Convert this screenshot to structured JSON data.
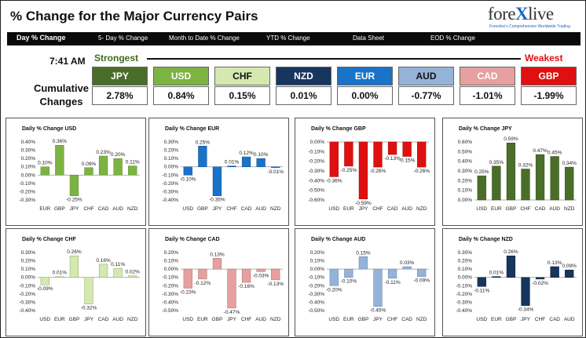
{
  "header": {
    "title": "% Change for the Major Currency Pairs",
    "logo_main_left": "fore",
    "logo_main_x": "X",
    "logo_main_right": "live",
    "logo_tagline": "Forexlive's Comprehensive Worldwide Trading"
  },
  "nav": {
    "items": [
      "Day % Change",
      "5- Day % Change",
      "Month to Date % Change",
      "YTD % Change",
      "Data Sheet",
      "EOD % Change"
    ]
  },
  "summary": {
    "time": "7:41 AM",
    "strongest_label": "Strongest",
    "weakest_label": "Weakest",
    "cumulative_label_line1": "Cumulative",
    "cumulative_label_line2": "Changes",
    "currencies": [
      {
        "code": "JPY",
        "value": "2.78%",
        "color": "#4a6e2a"
      },
      {
        "code": "USD",
        "value": "0.84%",
        "color": "#7cb342"
      },
      {
        "code": "CHF",
        "value": "0.15%",
        "color": "#d4e8b0"
      },
      {
        "code": "NZD",
        "value": "0.01%",
        "color": "#17365d"
      },
      {
        "code": "EUR",
        "value": "0.00%",
        "color": "#1a73c9"
      },
      {
        "code": "AUD",
        "value": "-0.77%",
        "color": "#95b3d7"
      },
      {
        "code": "CAD",
        "value": "-1.01%",
        "color": "#e6a0a0"
      },
      {
        "code": "GBP",
        "value": "-1.99%",
        "color": "#e01010"
      }
    ]
  },
  "chart_data": [
    {
      "type": "bar",
      "title": "Daily % Change USD",
      "categories": [
        "EUR",
        "GBP",
        "JPY",
        "CHF",
        "CAD",
        "AUD",
        "NZD"
      ],
      "values": [
        0.1,
        0.36,
        -0.25,
        0.09,
        0.23,
        0.2,
        0.11
      ],
      "labels": [
        "0.10%",
        "0.36%",
        "-0.25%",
        "0.09%",
        "0.23%",
        "0.20%",
        "0.11%"
      ],
      "ylim": [
        -0.3,
        0.4
      ],
      "ticks": [
        0.4,
        0.3,
        0.2,
        0.1,
        0.0,
        -0.1,
        -0.2,
        -0.3
      ],
      "tick_labels": [
        "0.40%",
        "0.30%",
        "0.20%",
        "0.10%",
        "0.00%",
        "-0.10%",
        "-0.20%",
        "-0.30%"
      ],
      "color": "#7cb342",
      "edge": "#5a8a28"
    },
    {
      "type": "bar",
      "title": "Daily % Change EUR",
      "categories": [
        "USD",
        "GBP",
        "JPY",
        "CHF",
        "CAD",
        "AUD",
        "NZD"
      ],
      "values": [
        -0.1,
        0.25,
        -0.35,
        0.01,
        0.12,
        0.1,
        -0.01
      ],
      "labels": [
        "-0.10%",
        "0.25%",
        "-0.35%",
        "0.01%",
        "0.12%",
        "0.10%",
        "-0.01%"
      ],
      "ylim": [
        -0.4,
        0.3
      ],
      "ticks": [
        0.3,
        0.2,
        0.1,
        0.0,
        -0.1,
        -0.2,
        -0.3,
        -0.4
      ],
      "tick_labels": [
        "0.30%",
        "0.20%",
        "0.10%",
        "0.00%",
        "-0.10%",
        "-0.20%",
        "-0.30%",
        "-0.40%"
      ],
      "color": "#1a73c9",
      "edge": "#0f4f91"
    },
    {
      "type": "bar",
      "title": "Daily % Change GBP",
      "categories": [
        "USD",
        "EUR",
        "JPY",
        "CHF",
        "CAD",
        "AUD",
        "NZD"
      ],
      "values": [
        -0.36,
        -0.25,
        -0.59,
        -0.26,
        -0.13,
        -0.15,
        -0.26
      ],
      "labels": [
        "-0.36%",
        "-0.25%",
        "-0.59%",
        "-0.26%",
        "-0.13%",
        "-0.15%",
        "-0.26%"
      ],
      "ylim": [
        -0.6,
        0.0
      ],
      "ticks": [
        0.0,
        -0.1,
        -0.2,
        -0.3,
        -0.4,
        -0.5,
        -0.6
      ],
      "tick_labels": [
        "0.00%",
        "-0.10%",
        "-0.20%",
        "-0.30%",
        "-0.40%",
        "-0.50%",
        "-0.60%"
      ],
      "color": "#e01010",
      "edge": "#a00000"
    },
    {
      "type": "bar",
      "title": "Daily % Change JPY",
      "categories": [
        "USD",
        "EUR",
        "GBP",
        "CHF",
        "CAD",
        "AUD",
        "NZD"
      ],
      "values": [
        0.25,
        0.35,
        0.59,
        0.32,
        0.47,
        0.45,
        0.34
      ],
      "labels": [
        "0.25%",
        "0.35%",
        "0.59%",
        "0.32%",
        "0.47%",
        "0.45%",
        "0.34%"
      ],
      "ylim": [
        0.0,
        0.6
      ],
      "ticks": [
        0.6,
        0.5,
        0.4,
        0.3,
        0.2,
        0.1,
        0.0
      ],
      "tick_labels": [
        "0.60%",
        "0.50%",
        "0.40%",
        "0.30%",
        "0.20%",
        "0.10%",
        "0.00%"
      ],
      "color": "#4a6e2a",
      "edge": "#2e4a15"
    },
    {
      "type": "bar",
      "title": "Daily % Change CHF",
      "categories": [
        "USD",
        "EUR",
        "GBP",
        "JPY",
        "CAD",
        "AUD",
        "NZD"
      ],
      "values": [
        -0.09,
        0.01,
        0.26,
        -0.32,
        0.16,
        0.11,
        0.02
      ],
      "labels": [
        "-0.09%",
        "0.01%",
        "0.26%",
        "-0.32%",
        "0.16%",
        "0.11%",
        "0.02%"
      ],
      "ylim": [
        -0.4,
        0.3
      ],
      "ticks": [
        0.3,
        0.2,
        0.1,
        0.0,
        -0.1,
        -0.2,
        -0.3,
        -0.4
      ],
      "tick_labels": [
        "0.30%",
        "0.20%",
        "0.10%",
        "0.00%",
        "-0.10%",
        "-0.20%",
        "-0.30%",
        "-0.40%"
      ],
      "color": "#d4e8b0",
      "edge": "#8aa860"
    },
    {
      "type": "bar",
      "title": "Daily % Change CAD",
      "categories": [
        "USD",
        "EUR",
        "GBP",
        "JPY",
        "CHF",
        "AUD",
        "NZD"
      ],
      "values": [
        -0.23,
        -0.12,
        0.13,
        -0.47,
        -0.16,
        -0.03,
        -0.13
      ],
      "labels": [
        "-0.23%",
        "-0.12%",
        "0.13%",
        "-0.47%",
        "-0.16%",
        "-0.03%",
        "-0.13%"
      ],
      "ylim": [
        -0.5,
        0.2
      ],
      "ticks": [
        0.2,
        0.1,
        0.0,
        -0.1,
        -0.2,
        -0.3,
        -0.4,
        -0.5
      ],
      "tick_labels": [
        "0.20%",
        "0.10%",
        "0.00%",
        "-0.10%",
        "-0.20%",
        "-0.30%",
        "-0.40%",
        "-0.50%"
      ],
      "color": "#e6a0a0",
      "edge": "#b06a6a"
    },
    {
      "type": "bar",
      "title": "Daily % Change AUD",
      "categories": [
        "USD",
        "EUR",
        "GBP",
        "JPY",
        "CHF",
        "CAD",
        "NZD"
      ],
      "values": [
        -0.2,
        -0.1,
        0.15,
        -0.45,
        -0.11,
        0.03,
        -0.09
      ],
      "labels": [
        "-0.20%",
        "-0.10%",
        "0.15%",
        "-0.45%",
        "-0.11%",
        "0.03%",
        "-0.09%"
      ],
      "ylim": [
        -0.5,
        0.2
      ],
      "ticks": [
        0.2,
        0.1,
        0.0,
        -0.1,
        -0.2,
        -0.3,
        -0.4,
        -0.5
      ],
      "tick_labels": [
        "0.20%",
        "0.10%",
        "0.00%",
        "-0.10%",
        "-0.20%",
        "-0.30%",
        "-0.40%",
        "-0.50%"
      ],
      "color": "#95b3d7",
      "edge": "#5f82ad"
    },
    {
      "type": "bar",
      "title": "Daily % Change NZD",
      "categories": [
        "USD",
        "EUR",
        "GBP",
        "JPY",
        "CHF",
        "CAD",
        "AUD"
      ],
      "values": [
        -0.11,
        0.01,
        0.26,
        -0.34,
        -0.02,
        0.13,
        0.09
      ],
      "labels": [
        "-0.11%",
        "0.01%",
        "0.26%",
        "-0.34%",
        "-0.02%",
        "0.13%",
        "0.09%"
      ],
      "ylim": [
        -0.4,
        0.3
      ],
      "ticks": [
        0.3,
        0.2,
        0.1,
        0.0,
        -0.1,
        -0.2,
        -0.3,
        -0.4
      ],
      "tick_labels": [
        "0.30%",
        "0.20%",
        "0.10%",
        "0.00%",
        "-0.10%",
        "-0.20%",
        "-0.30%",
        "-0.40%"
      ],
      "color": "#17365d",
      "edge": "#0a1a30"
    }
  ]
}
